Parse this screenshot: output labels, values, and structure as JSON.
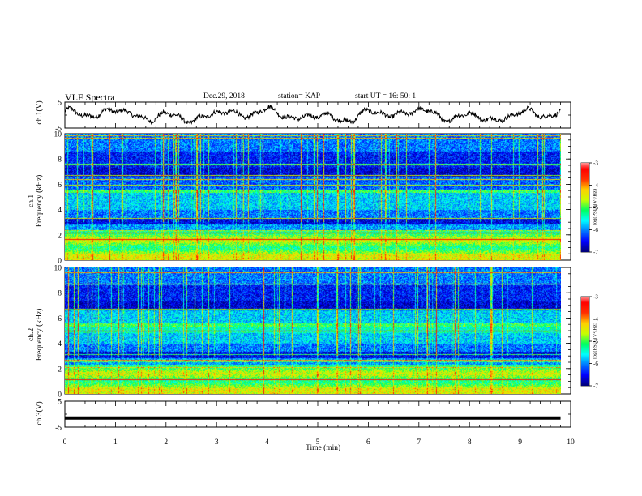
{
  "header": {
    "title": "VLF Spectra",
    "date": "Dec.29, 2018",
    "station": "station= KAP",
    "start_ut": "start  UT =   16: 50: 1"
  },
  "chart_data": [
    {
      "name": "ch1-waveform",
      "type": "line",
      "ylabel": "ch.1(V)",
      "ylim": [
        -5,
        5
      ],
      "yticks": [
        "5",
        "-5"
      ],
      "xlim": [
        0,
        10
      ],
      "note_signal_range_min": [
        0,
        9.8
      ],
      "color": "#000000"
    },
    {
      "name": "ch1-spectrogram",
      "type": "heatmap",
      "ylabel": "ch.1\nFrequency  (kHz)",
      "ylim": [
        0,
        10
      ],
      "yticks": [
        "0",
        "2",
        "4",
        "6",
        "8",
        "10"
      ],
      "xlim": [
        0,
        9.8
      ],
      "colorbar": {
        "label": "log(PSD)(V²/Hz)",
        "range": [
          -7,
          -3
        ],
        "ticks": [
          "-3",
          "-4",
          "-5",
          "-6",
          "-7"
        ],
        "colors": [
          "#00007a",
          "#0000ff",
          "#0078ff",
          "#00ffff",
          "#00ff60",
          "#c8ff00",
          "#ffd000",
          "#ff3000",
          "#ff0000",
          "#ffffff"
        ]
      }
    },
    {
      "name": "ch2-spectrogram",
      "type": "heatmap",
      "ylabel": "ch.2\nFrequency  (kHz)",
      "ylim": [
        0,
        10
      ],
      "yticks": [
        "0",
        "2",
        "4",
        "6",
        "8",
        "10"
      ],
      "xlim": [
        0,
        9.8
      ],
      "colorbar": {
        "label": "log(PSD)(V²/Hz)",
        "range": [
          -7,
          -3
        ],
        "ticks": [
          "-3",
          "-4",
          "-5",
          "-6",
          "-7"
        ],
        "colors": [
          "#00007a",
          "#0000ff",
          "#0078ff",
          "#00ffff",
          "#00ff60",
          "#c8ff00",
          "#ffd000",
          "#ff3000",
          "#ff0000",
          "#ffffff"
        ]
      }
    },
    {
      "name": "ch3-waveform",
      "type": "line",
      "ylabel": "ch.3(V)",
      "ylim": [
        -5,
        5
      ],
      "yticks": [
        "5",
        "-5"
      ],
      "xlim": [
        0,
        10
      ],
      "constant_value": -1.5,
      "color": "#000000"
    }
  ],
  "x_axis": {
    "label": "Time  (min)",
    "ticks": [
      "0",
      "1",
      "2",
      "3",
      "4",
      "5",
      "6",
      "7",
      "8",
      "9",
      "10"
    ]
  }
}
